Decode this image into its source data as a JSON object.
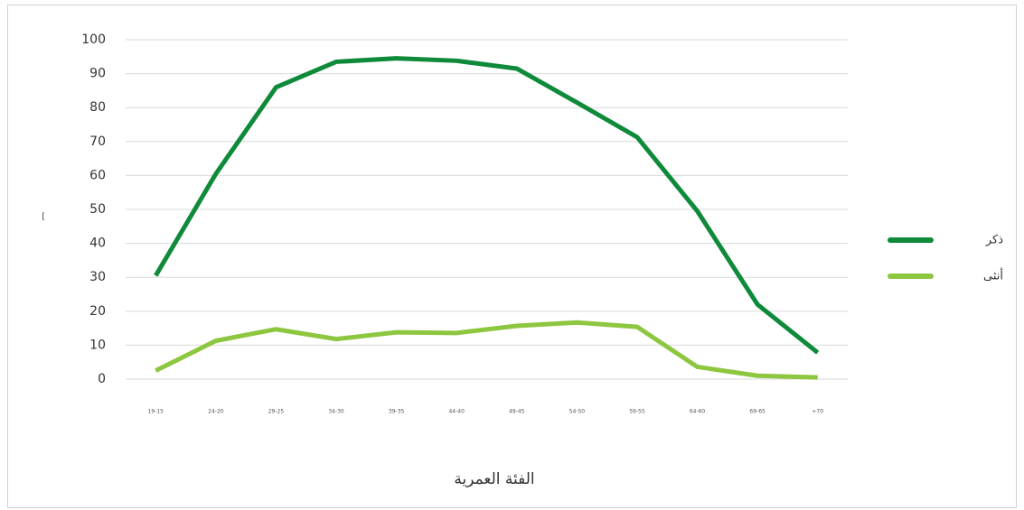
{
  "chart_data": {
    "type": "line",
    "x_label": "الفئة العمرية",
    "y_label": "[",
    "categories": [
      "19-15",
      "24-20",
      "29-25",
      "34-30",
      "39-35",
      "44-40",
      "49-45",
      "54-50",
      "59-55",
      "64-60",
      "69-65",
      "+70"
    ],
    "series": [
      {
        "name": "ذكر",
        "color": "#0e8a3a",
        "values": [
          30.5,
          60.5,
          86,
          93.5,
          94.5,
          93.8,
          91.5,
          81.5,
          71.3,
          49.5,
          22,
          7.8
        ]
      },
      {
        "name": "أنثى",
        "color": "#8dc63f",
        "values": [
          2.5,
          11.3,
          14.7,
          11.8,
          13.8,
          13.6,
          15.7,
          16.7,
          15.4,
          3.6,
          1,
          0.5
        ]
      }
    ],
    "ylim": [
      0,
      100
    ],
    "yticks": [
      0,
      10,
      20,
      30,
      40,
      50,
      60,
      70,
      80,
      90,
      100
    ],
    "grid": true,
    "legend": "right"
  }
}
